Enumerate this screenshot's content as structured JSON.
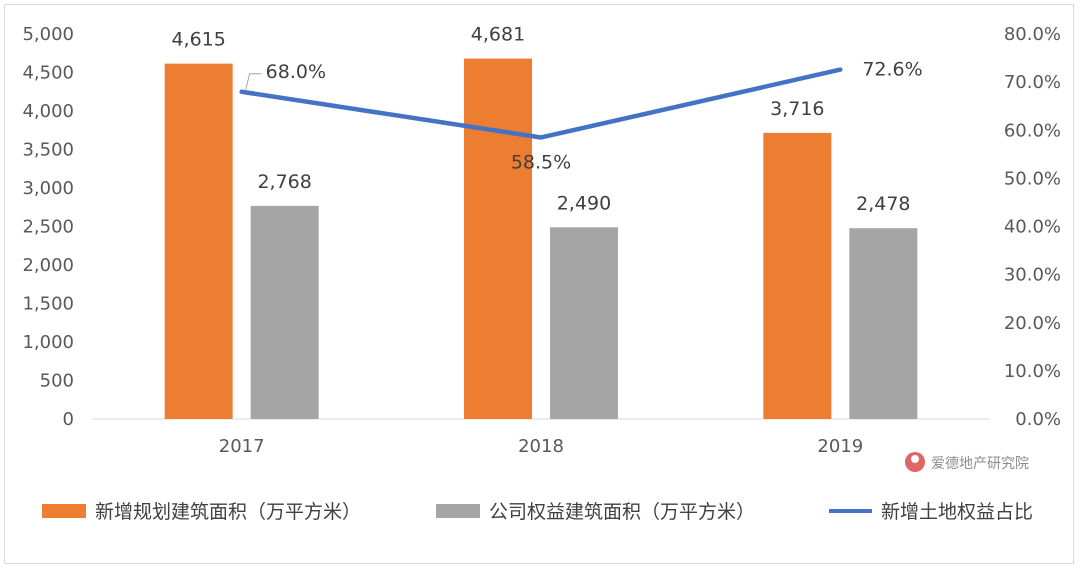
{
  "chart_data": {
    "type": "bar",
    "categories": [
      "2017",
      "2018",
      "2019"
    ],
    "series": [
      {
        "name": "新增规划建筑面积（万平方米）",
        "kind": "bar",
        "axis": "left",
        "color": "#ed7d31",
        "values": [
          4615,
          4681,
          3716
        ],
        "labels": [
          "4,615",
          "4,681",
          "3,716"
        ]
      },
      {
        "name": "公司权益建筑面积（万平方米）",
        "kind": "bar",
        "axis": "left",
        "color": "#a5a5a5",
        "values": [
          2768,
          2490,
          2478
        ],
        "labels": [
          "2,768",
          "2,490",
          "2,478"
        ]
      },
      {
        "name": "新增土地权益占比",
        "kind": "line",
        "axis": "right",
        "color": "#4472c4",
        "values": [
          68.0,
          58.5,
          72.6
        ],
        "labels": [
          "68.0%",
          "58.5%",
          "72.6%"
        ]
      }
    ],
    "y_left": {
      "range": [
        0,
        5000
      ],
      "ticks": [
        "0",
        "500",
        "1,000",
        "1,500",
        "2,000",
        "2,500",
        "3,000",
        "3,500",
        "4,000",
        "4,500",
        "5,000"
      ]
    },
    "y_right": {
      "range": [
        0,
        80
      ],
      "ticks": [
        "0.0%",
        "10.0%",
        "20.0%",
        "30.0%",
        "40.0%",
        "50.0%",
        "60.0%",
        "70.0%",
        "80.0%"
      ]
    },
    "grid": false,
    "legend": "bottom"
  },
  "watermark": {
    "text": "爱德地产研究院",
    "icon": "red-circle-logo"
  }
}
